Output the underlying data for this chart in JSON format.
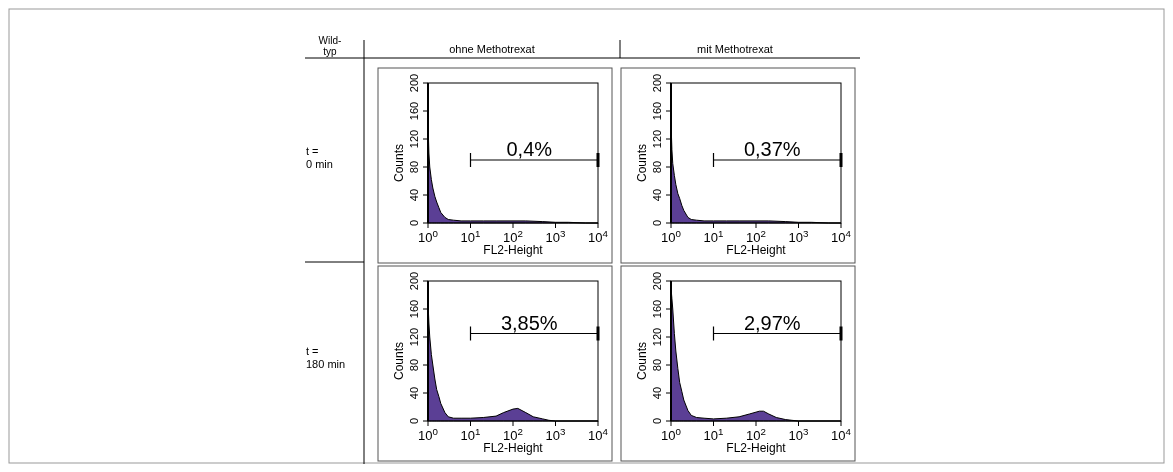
{
  "chart_data": [
    {
      "type": "other",
      "annotations": [
        "Wild-typ",
        "ohne Methotrexat",
        "mit Methotrexat",
        "t = 0 min",
        "t = 180 min"
      ]
    },
    {
      "type": "area",
      "xlabel": "FL2-Height",
      "ylabel": "Counts",
      "log": "x",
      "xlim": [
        1,
        10000
      ],
      "xticks": [
        {
          "value": 1,
          "label": "10$^{0}$"
        },
        {
          "value": 10,
          "label": "10$^{1}$"
        },
        {
          "value": 100,
          "label": "10$^{2}$"
        },
        {
          "value": 1000,
          "label": "10$^{3}$"
        },
        {
          "value": 10000,
          "label": "10$^{4}$"
        }
      ],
      "ylim": [
        0,
        200
      ],
      "yticks": [
        0,
        40,
        80,
        120,
        160,
        200
      ],
      "series": [
        {
          "color": "#5b3f95",
          "x": [
            1,
            1.05,
            1.1,
            1.2,
            1.3,
            1.45,
            1.6,
            1.8,
            2,
            2.5,
            3,
            4,
            6,
            10,
            20,
            40,
            100,
            200,
            500,
            1000,
            2000,
            5000,
            10000
          ],
          "values": [
            145,
            100,
            80,
            62,
            50,
            38,
            30,
            22,
            15,
            8,
            5,
            4,
            3,
            3,
            3,
            3,
            3,
            3,
            2,
            1,
            1,
            0,
            0
          ]
        },
        {
          "type": "line",
          "name": "0,4%",
          "color": "#000000",
          "x": [
            10,
            10000
          ],
          "values": [
            90,
            90
          ]
        }
      ]
    },
    {
      "type": "area",
      "xlabel": "FL2-Height",
      "ylabel": "Counts",
      "log": "x",
      "xlim": [
        1,
        10000
      ],
      "xticks": [
        {
          "value": 1,
          "label": "10$^{0}$"
        },
        {
          "value": 10,
          "label": "10$^{1}$"
        },
        {
          "value": 100,
          "label": "10$^{2}$"
        },
        {
          "value": 1000,
          "label": "10$^{3}$"
        },
        {
          "value": 10000,
          "label": "10$^{4}$"
        }
      ],
      "ylim": [
        0,
        200
      ],
      "yticks": [
        0,
        40,
        80,
        120,
        160,
        200
      ],
      "series": [
        {
          "color": "#5b3f95",
          "x": [
            1,
            1.05,
            1.1,
            1.2,
            1.3,
            1.45,
            1.6,
            1.8,
            2,
            2.5,
            3,
            4,
            6,
            10,
            20,
            40,
            100,
            200,
            500,
            1000,
            2000,
            5000,
            10000
          ],
          "values": [
            145,
            105,
            85,
            68,
            55,
            42,
            35,
            25,
            18,
            8,
            5,
            4,
            3,
            3,
            3,
            3,
            3,
            3,
            2,
            1,
            1,
            0,
            0
          ]
        },
        {
          "type": "line",
          "name": "0,37%",
          "color": "#000000",
          "x": [
            10,
            10000
          ],
          "values": [
            90,
            90
          ]
        }
      ]
    },
    {
      "type": "area",
      "xlabel": "FL2-Height",
      "ylabel": "Counts",
      "log": "x",
      "xlim": [
        1,
        10000
      ],
      "xticks": [
        {
          "value": 1,
          "label": "10$^{0}$"
        },
        {
          "value": 10,
          "label": "10$^{1}$"
        },
        {
          "value": 100,
          "label": "10$^{2}$"
        },
        {
          "value": 1000,
          "label": "10$^{3}$"
        },
        {
          "value": 10000,
          "label": "10$^{4}$"
        }
      ],
      "ylim": [
        0,
        200
      ],
      "yticks": [
        0,
        40,
        80,
        120,
        160,
        200
      ],
      "series": [
        {
          "color": "#5b3f95",
          "x": [
            1,
            1.05,
            1.1,
            1.2,
            1.3,
            1.45,
            1.6,
            1.8,
            2,
            2.5,
            3,
            4,
            6,
            10,
            20,
            40,
            60,
            100,
            130,
            200,
            300,
            500,
            700,
            1000,
            10000
          ],
          "values": [
            170,
            140,
            120,
            95,
            80,
            60,
            45,
            35,
            25,
            12,
            6,
            4,
            4,
            4,
            5,
            7,
            12,
            17,
            18,
            12,
            6,
            3,
            1,
            0,
            0
          ]
        },
        {
          "type": "line",
          "name": "3,85%",
          "color": "#000000",
          "x": [
            10,
            10000
          ],
          "values": [
            125,
            125
          ]
        }
      ]
    },
    {
      "type": "area",
      "xlabel": "FL2-Height",
      "ylabel": "Counts",
      "log": "x",
      "xlim": [
        1,
        10000
      ],
      "xticks": [
        {
          "value": 1,
          "label": "10$^{0}$"
        },
        {
          "value": 10,
          "label": "10$^{1}$"
        },
        {
          "value": 100,
          "label": "10$^{2}$"
        },
        {
          "value": 1000,
          "label": "10$^{3}$"
        },
        {
          "value": 10000,
          "label": "10$^{4}$"
        }
      ],
      "ylim": [
        0,
        200
      ],
      "yticks": [
        0,
        40,
        80,
        120,
        160,
        200
      ],
      "series": [
        {
          "color": "#5b3f95",
          "x": [
            1,
            1.05,
            1.1,
            1.2,
            1.3,
            1.45,
            1.6,
            1.8,
            2,
            2.5,
            3,
            4,
            6,
            10,
            20,
            40,
            70,
            120,
            150,
            200,
            300,
            500,
            700,
            1000,
            10000
          ],
          "values": [
            190,
            175,
            160,
            125,
            100,
            75,
            55,
            42,
            30,
            15,
            8,
            5,
            4,
            3,
            4,
            6,
            10,
            14,
            14,
            10,
            5,
            2,
            1,
            0,
            0
          ]
        },
        {
          "type": "line",
          "name": "2,97%",
          "color": "#000000",
          "x": [
            10,
            10000
          ],
          "values": [
            125,
            125
          ]
        }
      ]
    }
  ]
}
